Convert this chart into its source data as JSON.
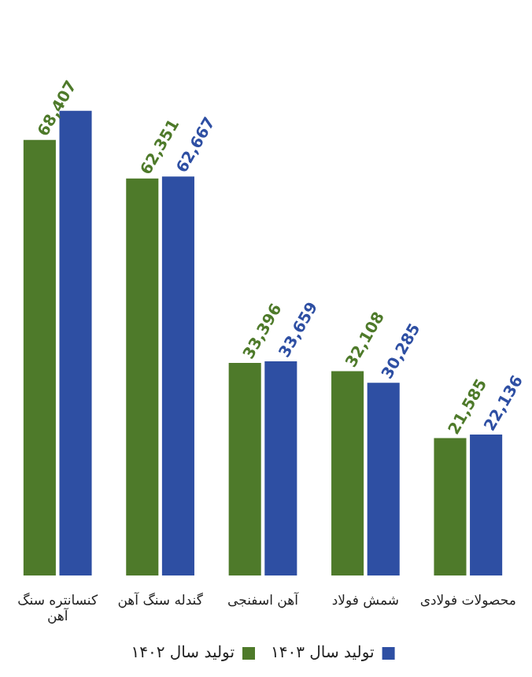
{
  "chart_data": {
    "type": "bar",
    "categories": [
      [
        "کنسانتره سنگ",
        "آهن"
      ],
      "گندله سنگ آهن",
      "آهن اسفنجی",
      "شمش فولاد",
      "محصولات فولادی"
    ],
    "series": [
      {
        "name": "تولید سال ۱۴۰۲",
        "color": "#4e7a2a",
        "values": [
          68407,
          62351,
          33396,
          32108,
          21585
        ],
        "value_labels": [
          "68,407",
          "62,351",
          "33,396",
          "32,108",
          "21,585"
        ]
      },
      {
        "name": "تولید سال ۱۴۰۳",
        "color": "#2e4fa3",
        "values": [
          73000,
          62667,
          33659,
          30285,
          22136
        ],
        "value_labels": [
          null,
          "62,667",
          "33,659",
          "30,285",
          "22,136"
        ]
      }
    ],
    "legend": "bottom"
  }
}
